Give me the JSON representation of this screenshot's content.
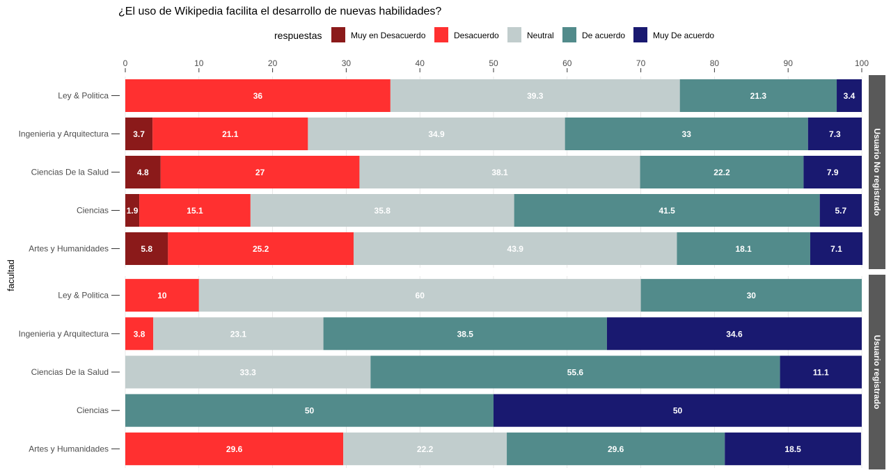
{
  "colors": {
    "Muy en Desacuerdo": "#8b1a1a",
    "Desacuerdo": "#ff3030",
    "Neutral": "#c1cdcd",
    "De acuerdo": "#528b8b",
    "Muy De acuerdo": "#191970",
    "strip_bg": "#595959"
  },
  "chart_data": {
    "type": "bar",
    "orientation": "horizontal",
    "stacked": true,
    "title": "¿El uso de Wikipedia facilita el desarrollo de nuevas habilidades?",
    "ylabel": "facultad",
    "xlim": [
      0,
      100
    ],
    "xticks": [
      0,
      10,
      20,
      30,
      40,
      50,
      60,
      70,
      80,
      90,
      100
    ],
    "legend": {
      "title": "respuestas",
      "placement": "top",
      "entries": [
        "Muy en Desacuerdo",
        "Desacuerdo",
        "Neutral",
        "De acuerdo",
        "Muy De acuerdo"
      ]
    },
    "grid": true,
    "facets": [
      {
        "label": "Usuario No registrado",
        "categories": [
          "Ley & Politica",
          "Ingenieria y Arquitectura",
          "Ciencias De la Salud",
          "Ciencias",
          "Artes y Humanidades"
        ],
        "series": [
          {
            "name": "Muy en Desacuerdo",
            "values": [
              0,
              3.7,
              4.8,
              1.9,
              5.8
            ]
          },
          {
            "name": "Desacuerdo",
            "values": [
              36,
              21.1,
              27,
              15.1,
              25.2
            ]
          },
          {
            "name": "Neutral",
            "values": [
              39.3,
              34.9,
              38.1,
              35.8,
              43.9
            ]
          },
          {
            "name": "De acuerdo",
            "values": [
              21.3,
              33,
              22.2,
              41.5,
              18.1
            ]
          },
          {
            "name": "Muy De acuerdo",
            "values": [
              3.4,
              7.3,
              7.9,
              5.7,
              7.1
            ]
          }
        ]
      },
      {
        "label": "Usuario registrado",
        "categories": [
          "Ley & Politica",
          "Ingenieria y Arquitectura",
          "Ciencias De la Salud",
          "Ciencias",
          "Artes y Humanidades"
        ],
        "series": [
          {
            "name": "Muy en Desacuerdo",
            "values": [
              0,
              0,
              0,
              0,
              0
            ]
          },
          {
            "name": "Desacuerdo",
            "values": [
              10,
              3.8,
              0,
              0,
              29.6
            ]
          },
          {
            "name": "Neutral",
            "values": [
              60,
              23.1,
              33.3,
              0,
              22.2
            ]
          },
          {
            "name": "De acuerdo",
            "values": [
              30,
              38.5,
              55.6,
              50,
              29.6
            ]
          },
          {
            "name": "Muy De acuerdo",
            "values": [
              0,
              34.6,
              11.1,
              50,
              18.5
            ]
          }
        ]
      }
    ]
  }
}
